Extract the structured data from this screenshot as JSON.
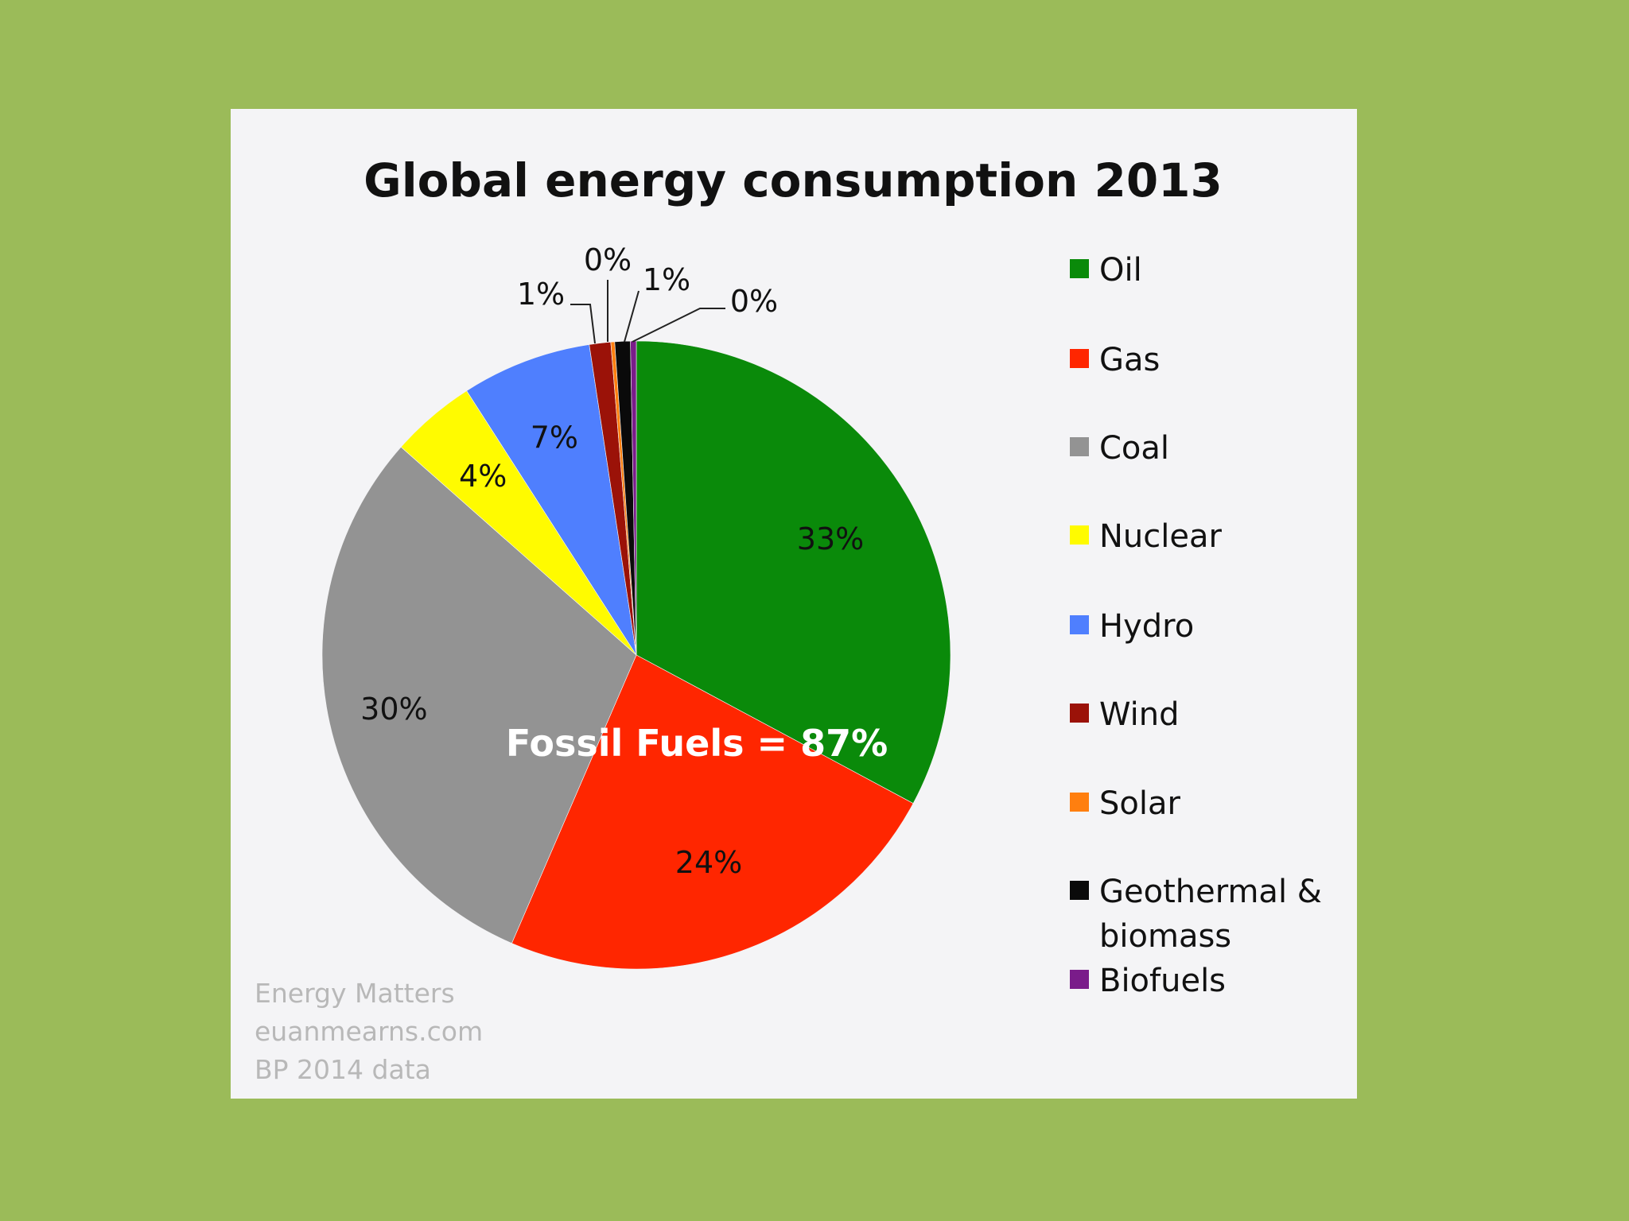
{
  "chart_data": {
    "type": "pie",
    "title": "Global energy consumption 2013",
    "categories": [
      "Oil",
      "Gas",
      "Coal",
      "Nuclear",
      "Hydro",
      "Wind",
      "Solar",
      "Geothermal & biomass",
      "Biofuels"
    ],
    "values": [
      32.9,
      23.7,
      30.1,
      4.4,
      6.7,
      1.1,
      0.2,
      0.8,
      0.3
    ],
    "data_labels": [
      "33%",
      "24%",
      "30%",
      "4%",
      "7%",
      "1%",
      "0%",
      "1%",
      "0%"
    ],
    "colors": [
      "#0a8a0a",
      "#ff2600",
      "#939393",
      "#fffb00",
      "#4f7ffe",
      "#9b1208",
      "#ff7f0f",
      "#0a0a0a",
      "#7a1c8a"
    ],
    "legend_position": "right",
    "annotation": "Fossil Fuels = 87%"
  },
  "legend": {
    "items": [
      "Oil",
      "Gas",
      "Coal",
      "Nuclear",
      "Hydro",
      "Wind",
      "Solar",
      "Geothermal &|biomass",
      "Biofuels"
    ]
  },
  "credits": [
    "Energy Matters",
    "euanmearns.com",
    "BP 2014 data"
  ]
}
